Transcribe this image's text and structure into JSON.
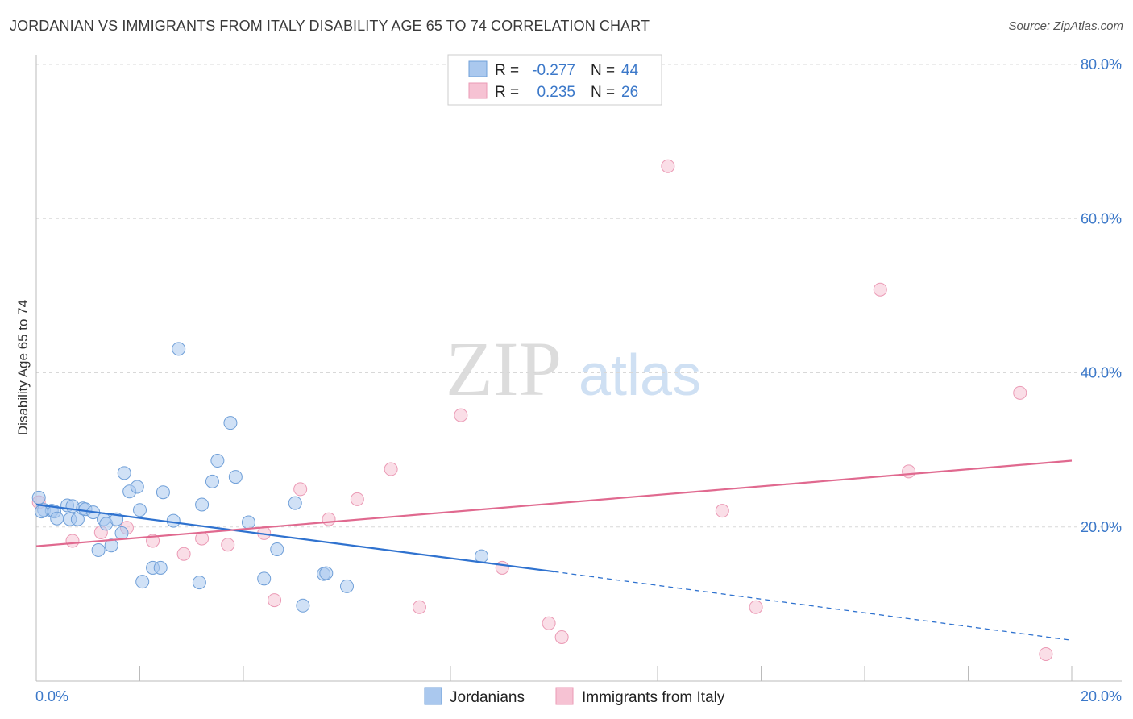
{
  "header": {
    "title": "JORDANIAN VS IMMIGRANTS FROM ITALY DISABILITY AGE 65 TO 74 CORRELATION CHART",
    "source": "Source: ZipAtlas.com"
  },
  "watermark": {
    "zip": "ZIP",
    "atlas": "atlas"
  },
  "colors": {
    "blue_fill": "#aac8ee",
    "blue_stroke": "#6f9fd8",
    "blue_line": "#2f72cf",
    "pink_fill": "#f6c2d3",
    "pink_stroke": "#eb9ab5",
    "pink_line": "#e0698f",
    "tick_label": "#3b78c9",
    "grid": "#d8d8d8"
  },
  "legend": {
    "row1": {
      "r_label": "R =",
      "r_value": "-0.277",
      "n_label": "N =",
      "n_value": "44"
    },
    "row2": {
      "r_label": "R =",
      "r_value": "0.235",
      "n_label": "N =",
      "n_value": "26"
    }
  },
  "bottom_legend": {
    "series1": "Jordanians",
    "series2": "Immigrants from Italy"
  },
  "chart_data": {
    "type": "scatter",
    "title": "JORDANIAN VS IMMIGRANTS FROM ITALY DISABILITY AGE 65 TO 74 CORRELATION CHART",
    "xlabel": "",
    "ylabel": "Disability Age 65 to 74",
    "xlim": [
      0,
      20
    ],
    "ylim": [
      0,
      80
    ],
    "x_tick_labels": [
      "0.0%",
      "20.0%"
    ],
    "y_ticks": [
      20,
      40,
      60,
      80
    ],
    "y_tick_labels": [
      "20.0%",
      "40.0%",
      "60.0%",
      "80.0%"
    ],
    "grid": true,
    "legend_position": "top-center",
    "series": [
      {
        "name": "Jordanians",
        "R": -0.277,
        "N": 44,
        "trend": {
          "x0": 0,
          "y0": 22.9,
          "x1": 10,
          "y1": 14.2,
          "x_end": 20,
          "y_end": 5.3,
          "dashed_after_x": 10
        },
        "points": [
          [
            0.05,
            23.8
          ],
          [
            0.15,
            22.2
          ],
          [
            0.3,
            22.1
          ],
          [
            0.35,
            22.0
          ],
          [
            0.4,
            21.1
          ],
          [
            0.6,
            22.8
          ],
          [
            0.65,
            21.0
          ],
          [
            0.7,
            22.7
          ],
          [
            0.8,
            21.0
          ],
          [
            0.9,
            22.4
          ],
          [
            0.95,
            22.3
          ],
          [
            1.1,
            21.9
          ],
          [
            1.2,
            17.0
          ],
          [
            1.3,
            21.0
          ],
          [
            1.35,
            20.4
          ],
          [
            1.45,
            17.6
          ],
          [
            1.55,
            21.0
          ],
          [
            1.65,
            19.2
          ],
          [
            1.7,
            27.0
          ],
          [
            1.8,
            24.6
          ],
          [
            1.95,
            25.2
          ],
          [
            2.0,
            22.2
          ],
          [
            2.05,
            12.9
          ],
          [
            2.25,
            14.7
          ],
          [
            2.4,
            14.7
          ],
          [
            2.45,
            24.5
          ],
          [
            2.65,
            20.8
          ],
          [
            2.75,
            43.1
          ],
          [
            3.15,
            12.8
          ],
          [
            3.2,
            22.9
          ],
          [
            3.4,
            25.9
          ],
          [
            3.5,
            28.6
          ],
          [
            3.75,
            33.5
          ],
          [
            3.85,
            26.5
          ],
          [
            4.1,
            20.6
          ],
          [
            4.4,
            13.3
          ],
          [
            4.65,
            17.1
          ],
          [
            5.0,
            23.1
          ],
          [
            5.15,
            9.8
          ],
          [
            5.55,
            13.9
          ],
          [
            5.6,
            14.0
          ],
          [
            6.0,
            12.3
          ],
          [
            8.6,
            16.2
          ],
          [
            0.1,
            22.0
          ]
        ]
      },
      {
        "name": "Immigrants from Italy",
        "R": 0.235,
        "N": 26,
        "trend": {
          "x0": 0,
          "y0": 17.5,
          "x1": 20,
          "y1": 28.6
        },
        "points": [
          [
            0.05,
            23.2
          ],
          [
            0.7,
            18.2
          ],
          [
            1.25,
            19.3
          ],
          [
            1.75,
            19.9
          ],
          [
            2.25,
            18.2
          ],
          [
            2.85,
            16.5
          ],
          [
            3.2,
            18.5
          ],
          [
            3.7,
            17.7
          ],
          [
            4.4,
            19.2
          ],
          [
            4.6,
            10.5
          ],
          [
            5.1,
            24.9
          ],
          [
            5.65,
            21.0
          ],
          [
            6.2,
            23.6
          ],
          [
            6.85,
            27.5
          ],
          [
            7.4,
            9.6
          ],
          [
            8.2,
            34.5
          ],
          [
            9.0,
            14.7
          ],
          [
            9.9,
            7.5
          ],
          [
            10.15,
            5.7
          ],
          [
            12.2,
            66.8
          ],
          [
            13.25,
            22.1
          ],
          [
            13.9,
            9.6
          ],
          [
            16.3,
            50.8
          ],
          [
            16.85,
            27.2
          ],
          [
            19.0,
            37.4
          ],
          [
            19.5,
            3.5
          ]
        ]
      }
    ]
  }
}
